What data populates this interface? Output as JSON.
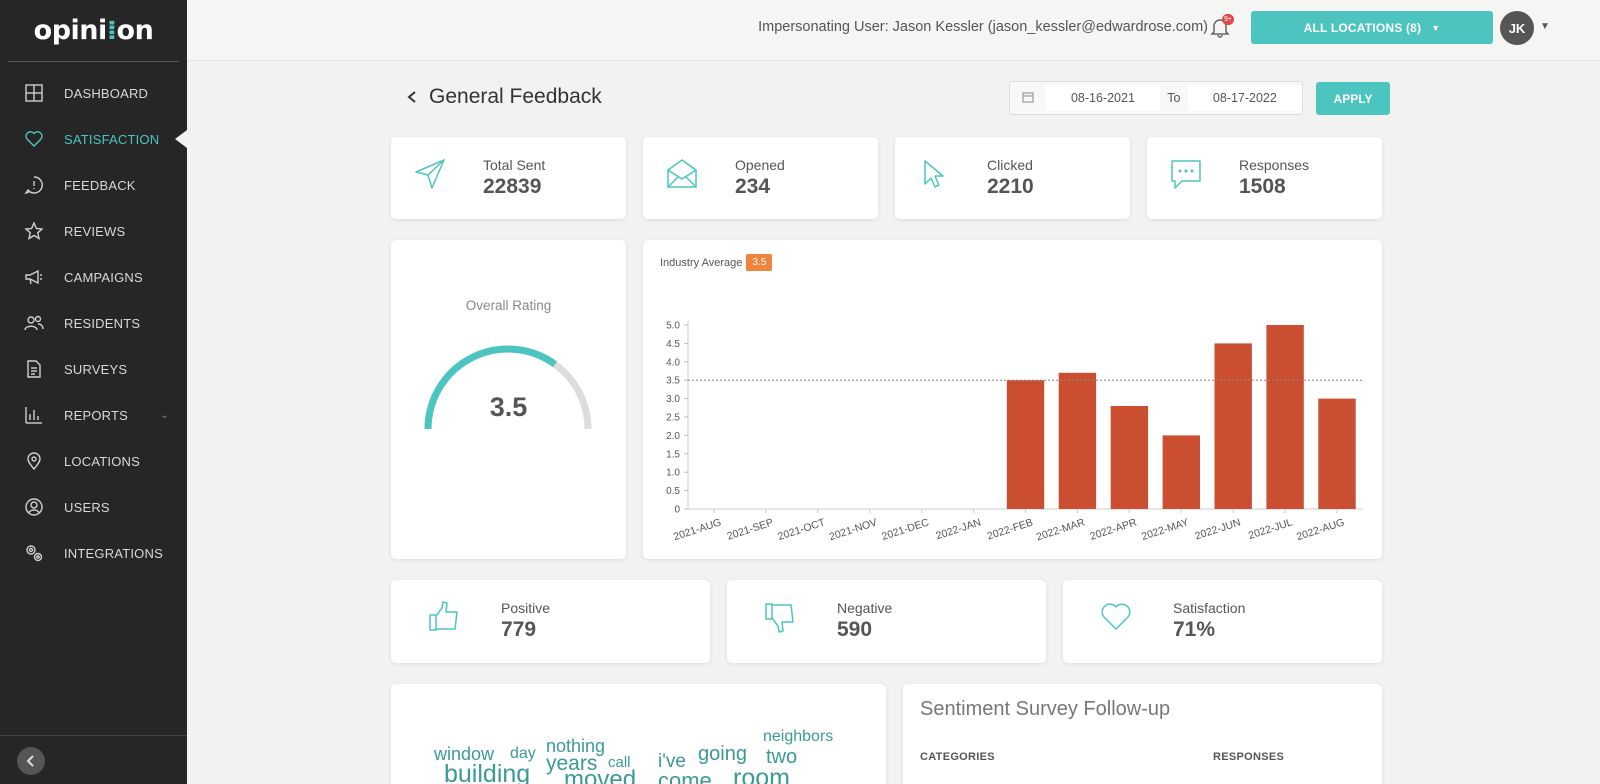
{
  "app": {
    "logo": "opinion"
  },
  "sidebar": {
    "items": [
      {
        "label": "DASHBOARD",
        "icon": "dashboard-icon",
        "active": false
      },
      {
        "label": "SATISFACTION",
        "icon": "heart-icon",
        "active": true
      },
      {
        "label": "FEEDBACK",
        "icon": "feedback-icon",
        "active": false
      },
      {
        "label": "REVIEWS",
        "icon": "star-icon",
        "active": false
      },
      {
        "label": "CAMPAIGNS",
        "icon": "megaphone-icon",
        "active": false
      },
      {
        "label": "RESIDENTS",
        "icon": "users-icon",
        "active": false
      },
      {
        "label": "SURVEYS",
        "icon": "document-icon",
        "active": false
      },
      {
        "label": "REPORTS",
        "icon": "bar-chart-icon",
        "active": false
      },
      {
        "label": "LOCATIONS",
        "icon": "map-pin-icon",
        "active": false
      },
      {
        "label": "USERS",
        "icon": "user-circle-icon",
        "active": false
      },
      {
        "label": "INTEGRATIONS",
        "icon": "gears-icon",
        "active": false
      }
    ]
  },
  "topbar": {
    "impersonating": "Impersonating User: Jason Kessler (jason_kessler@edwardrose.com)",
    "notification_badge": "9+",
    "locations_button": "ALL LOCATIONS (8)",
    "avatar_initials": "JK"
  },
  "page": {
    "title": "General Feedback",
    "date_from": "08-16-2021",
    "date_to_label": "To",
    "date_to": "08-17-2022",
    "apply_label": "APPLY"
  },
  "stats": [
    {
      "label": "Total Sent",
      "value": "22839"
    },
    {
      "label": "Opened",
      "value": "234"
    },
    {
      "label": "Clicked",
      "value": "2210"
    },
    {
      "label": "Responses",
      "value": "1508"
    }
  ],
  "rating": {
    "title": "Overall Rating",
    "value": "3.5",
    "fraction": 0.7
  },
  "sentiment": [
    {
      "label": "Positive",
      "value": "779"
    },
    {
      "label": "Negative",
      "value": "590"
    },
    {
      "label": "Satisfaction",
      "value": "71%"
    }
  ],
  "chart_data": {
    "type": "bar",
    "industry_label": "Industry Average",
    "industry_average": 3.5,
    "categories": [
      "2021-AUG",
      "2021-SEP",
      "2021-OCT",
      "2021-NOV",
      "2021-DEC",
      "2022-JAN",
      "2022-FEB",
      "2022-MAR",
      "2022-APR",
      "2022-MAY",
      "2022-JUN",
      "2022-JUL",
      "2022-AUG"
    ],
    "values": [
      0,
      0,
      0,
      0,
      0,
      0,
      3.5,
      3.7,
      2.8,
      2.0,
      4.5,
      5.0,
      3.0
    ],
    "yticks": [
      "0",
      "0.5",
      "1.0",
      "1.5",
      "2.0",
      "2.5",
      "3.0",
      "3.5",
      "4.0",
      "4.5",
      "5.0"
    ],
    "ylim": [
      0,
      5
    ],
    "bar_color": "#c94f30"
  },
  "wordcloud": {
    "words": [
      "window",
      "day",
      "nothing",
      "neighbors",
      "years",
      "call",
      "i've",
      "going",
      "two",
      "building",
      "moved",
      "come",
      "room"
    ]
  },
  "followup": {
    "title": "Sentiment Survey Follow-up",
    "col_categories": "CATEGORIES",
    "col_responses": "RESPONSES"
  },
  "colors": {
    "accent": "#4cc5c0",
    "sidebar": "#262626",
    "bar": "#c94f30",
    "badge": "#f0843c"
  }
}
